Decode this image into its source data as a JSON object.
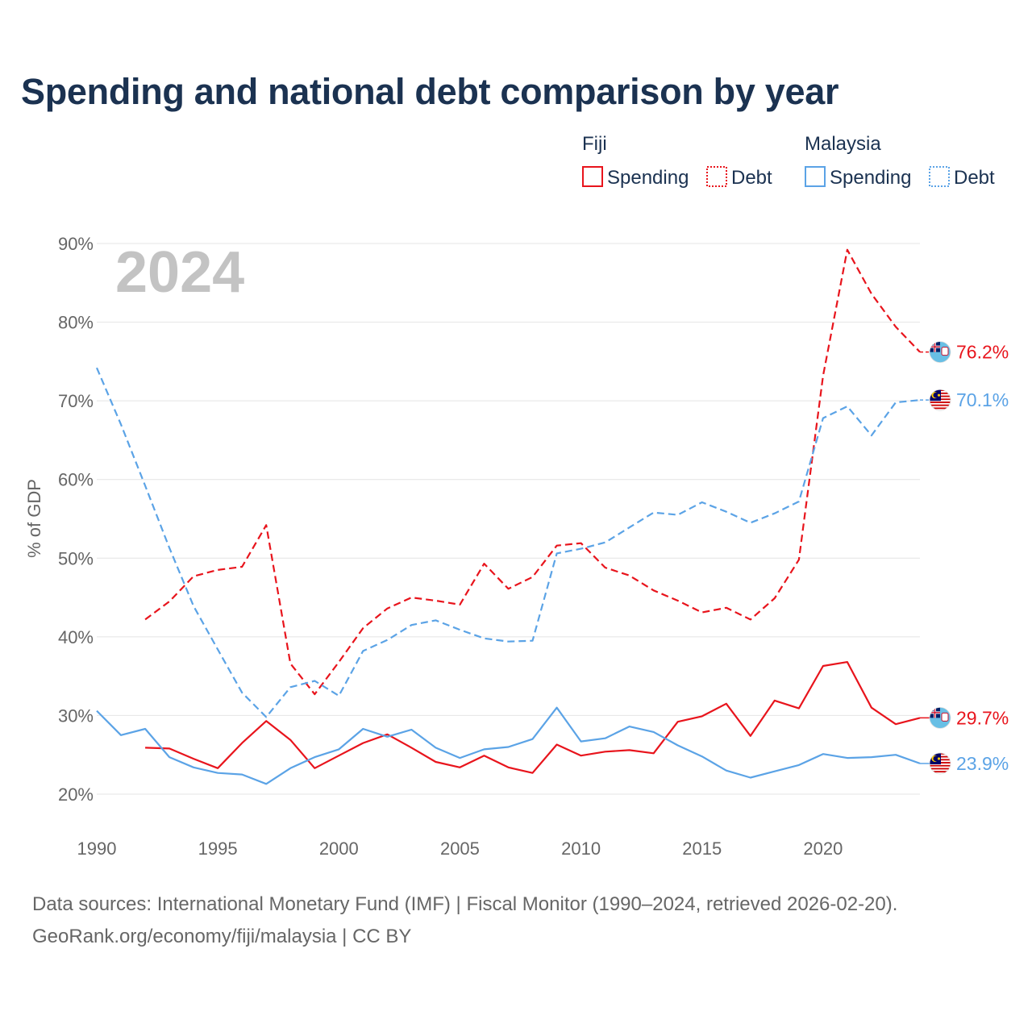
{
  "title": "Spending and national debt comparison by year",
  "year_label": "2024",
  "source_lines": [
    "Data sources: International Monetary Fund (IMF) | Fiscal Monitor (1990–2024, retrieved 2026-02-20).",
    "GeoRank.org/economy/fiji/malaysia | CC BY"
  ],
  "colors": {
    "fiji": "#e8141c",
    "malaysia": "#5ba3e6",
    "grid": "#e4e4e4",
    "axis_text": "#666666",
    "legend_text": "#1b3251",
    "year_watermark": "#c3c3c3"
  },
  "legend": {
    "groups": [
      {
        "country": "Fiji",
        "color_key": "fiji",
        "items": [
          {
            "label": "Spending",
            "style": "solid"
          },
          {
            "label": "Debt",
            "style": "dotted"
          }
        ]
      },
      {
        "country": "Malaysia",
        "color_key": "malaysia",
        "items": [
          {
            "label": "Spending",
            "style": "solid"
          },
          {
            "label": "Debt",
            "style": "dotted"
          }
        ]
      }
    ]
  },
  "chart_data": {
    "type": "line",
    "title": "Spending and national debt comparison by year",
    "xlabel": "",
    "ylabel": "% of GDP",
    "xlim": [
      1990,
      2024
    ],
    "ylim": [
      20,
      90
    ],
    "y_ticks": [
      20,
      30,
      40,
      50,
      60,
      70,
      80,
      90
    ],
    "y_tick_labels": [
      "20%",
      "30%",
      "40%",
      "50%",
      "60%",
      "70%",
      "80%",
      "90%"
    ],
    "x_ticks": [
      1990,
      1995,
      2000,
      2005,
      2010,
      2015,
      2020
    ],
    "x_tick_labels": [
      "1990",
      "1995",
      "2000",
      "2005",
      "2010",
      "2015",
      "2020"
    ],
    "grid": true,
    "legend_position": "top-right",
    "series": [
      {
        "name": "Fiji Spending",
        "country": "fiji",
        "metric": "Spending",
        "color_key": "fiji",
        "dash": "solid",
        "end_label": "29.7%",
        "flag": "fiji",
        "points": [
          [
            1992,
            25.9
          ],
          [
            1993,
            25.8
          ],
          [
            1994,
            24.5
          ],
          [
            1995,
            23.3
          ],
          [
            1996,
            26.5
          ],
          [
            1997,
            29.3
          ],
          [
            1998,
            26.9
          ],
          [
            1999,
            23.3
          ],
          [
            2000,
            24.9
          ],
          [
            2001,
            26.5
          ],
          [
            2002,
            27.6
          ],
          [
            2003,
            25.9
          ],
          [
            2004,
            24.1
          ],
          [
            2005,
            23.4
          ],
          [
            2006,
            24.9
          ],
          [
            2007,
            23.4
          ],
          [
            2008,
            22.7
          ],
          [
            2009,
            26.3
          ],
          [
            2010,
            24.9
          ],
          [
            2011,
            25.4
          ],
          [
            2012,
            25.6
          ],
          [
            2013,
            25.2
          ],
          [
            2014,
            29.2
          ],
          [
            2015,
            29.9
          ],
          [
            2016,
            31.5
          ],
          [
            2017,
            27.4
          ],
          [
            2018,
            31.9
          ],
          [
            2019,
            30.9
          ],
          [
            2020,
            36.3
          ],
          [
            2021,
            36.8
          ],
          [
            2022,
            31.0
          ],
          [
            2023,
            28.9
          ],
          [
            2024,
            29.7
          ]
        ]
      },
      {
        "name": "Fiji Debt",
        "country": "fiji",
        "metric": "Debt",
        "color_key": "fiji",
        "dash": "dashed",
        "end_label": "76.2%",
        "flag": "fiji",
        "points": [
          [
            1992,
            42.2
          ],
          [
            1993,
            44.5
          ],
          [
            1994,
            47.7
          ],
          [
            1995,
            48.5
          ],
          [
            1996,
            48.9
          ],
          [
            1997,
            54.2
          ],
          [
            1998,
            36.6
          ],
          [
            1999,
            32.7
          ],
          [
            2000,
            36.8
          ],
          [
            2001,
            41.1
          ],
          [
            2002,
            43.6
          ],
          [
            2003,
            45.0
          ],
          [
            2004,
            44.6
          ],
          [
            2005,
            44.1
          ],
          [
            2006,
            49.3
          ],
          [
            2007,
            46.1
          ],
          [
            2008,
            47.6
          ],
          [
            2009,
            51.6
          ],
          [
            2010,
            51.9
          ],
          [
            2011,
            48.8
          ],
          [
            2012,
            47.8
          ],
          [
            2013,
            45.9
          ],
          [
            2014,
            44.6
          ],
          [
            2015,
            43.1
          ],
          [
            2016,
            43.7
          ],
          [
            2017,
            42.2
          ],
          [
            2018,
            44.9
          ],
          [
            2019,
            49.8
          ],
          [
            2020,
            73.2
          ],
          [
            2021,
            89.2
          ],
          [
            2022,
            83.6
          ],
          [
            2023,
            79.4
          ],
          [
            2024,
            76.2
          ]
        ]
      },
      {
        "name": "Malaysia Spending",
        "country": "malaysia",
        "metric": "Spending",
        "color_key": "malaysia",
        "dash": "solid",
        "end_label": "23.9%",
        "flag": "malaysia",
        "points": [
          [
            1990,
            30.6
          ],
          [
            1991,
            27.5
          ],
          [
            1992,
            28.3
          ],
          [
            1993,
            24.7
          ],
          [
            1994,
            23.4
          ],
          [
            1995,
            22.7
          ],
          [
            1996,
            22.5
          ],
          [
            1997,
            21.3
          ],
          [
            1998,
            23.3
          ],
          [
            1999,
            24.7
          ],
          [
            2000,
            25.7
          ],
          [
            2001,
            28.3
          ],
          [
            2002,
            27.3
          ],
          [
            2003,
            28.2
          ],
          [
            2004,
            25.9
          ],
          [
            2005,
            24.6
          ],
          [
            2006,
            25.7
          ],
          [
            2007,
            26.0
          ],
          [
            2008,
            27.0
          ],
          [
            2009,
            31.0
          ],
          [
            2010,
            26.7
          ],
          [
            2011,
            27.1
          ],
          [
            2012,
            28.6
          ],
          [
            2013,
            27.9
          ],
          [
            2014,
            26.2
          ],
          [
            2015,
            24.8
          ],
          [
            2016,
            23.0
          ],
          [
            2017,
            22.1
          ],
          [
            2018,
            22.9
          ],
          [
            2019,
            23.7
          ],
          [
            2020,
            25.1
          ],
          [
            2021,
            24.6
          ],
          [
            2022,
            24.7
          ],
          [
            2023,
            25.0
          ],
          [
            2024,
            23.9
          ]
        ]
      },
      {
        "name": "Malaysia Debt",
        "country": "malaysia",
        "metric": "Debt",
        "color_key": "malaysia",
        "dash": "dashed",
        "end_label": "70.1%",
        "flag": "malaysia",
        "points": [
          [
            1990,
            74.2
          ],
          [
            1991,
            67.0
          ],
          [
            1992,
            59.2
          ],
          [
            1993,
            51.3
          ],
          [
            1994,
            43.9
          ],
          [
            1995,
            38.4
          ],
          [
            1996,
            32.9
          ],
          [
            1997,
            29.8
          ],
          [
            1998,
            33.6
          ],
          [
            1999,
            34.4
          ],
          [
            2000,
            32.5
          ],
          [
            2001,
            38.2
          ],
          [
            2002,
            39.6
          ],
          [
            2003,
            41.5
          ],
          [
            2004,
            42.1
          ],
          [
            2005,
            40.9
          ],
          [
            2006,
            39.8
          ],
          [
            2007,
            39.4
          ],
          [
            2008,
            39.5
          ],
          [
            2009,
            50.6
          ],
          [
            2010,
            51.2
          ],
          [
            2011,
            52.0
          ],
          [
            2012,
            53.9
          ],
          [
            2013,
            55.8
          ],
          [
            2014,
            55.5
          ],
          [
            2015,
            57.1
          ],
          [
            2016,
            55.9
          ],
          [
            2017,
            54.5
          ],
          [
            2018,
            55.7
          ],
          [
            2019,
            57.2
          ],
          [
            2020,
            67.8
          ],
          [
            2021,
            69.3
          ],
          [
            2022,
            65.6
          ],
          [
            2023,
            69.8
          ],
          [
            2024,
            70.1
          ]
        ]
      }
    ]
  }
}
